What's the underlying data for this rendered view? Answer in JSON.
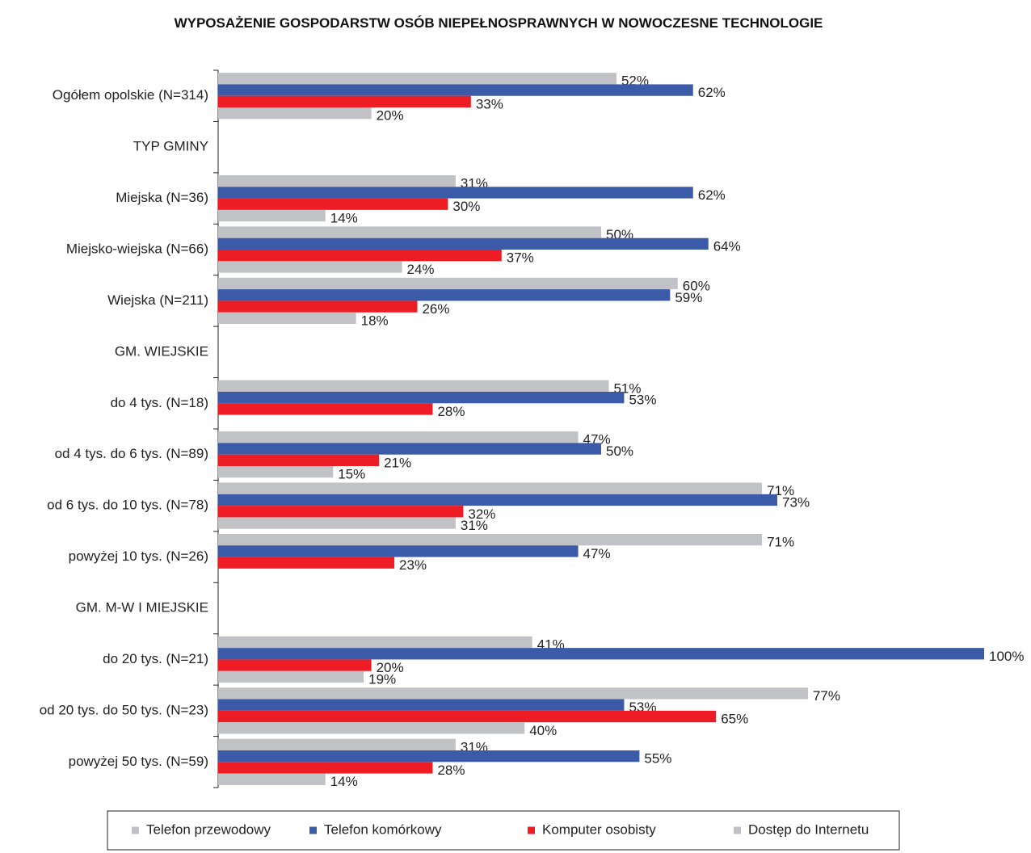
{
  "chart_data": {
    "type": "hbar",
    "title": "WYPOSAŻENIE GOSPODARSTW OSÓB NIEPEŁNOSPRAWNYCH W NOWOCZESNE TECHNOLOGIE",
    "categories": [
      "Ogółem opolskie (N=314)",
      "TYP GMINY",
      "Miejska (N=36)",
      "Miejsko-wiejska (N=66)",
      "Wiejska (N=211)",
      "GM. WIEJSKIE",
      "do 4 tys. (N=18)",
      "od 4 tys. do 6 tys. (N=89)",
      "od 6 tys. do 10 tys. (N=78)",
      "powyżej 10 tys. (N=26)",
      "GM. M-W I MIEJSKIE",
      "do 20 tys. (N=21)",
      "od 20 tys. do 50 tys. (N=23)",
      "powyżej 50 tys. (N=59)"
    ],
    "series": [
      {
        "name": "Telefon przewodowy",
        "color": "#c1c2c6",
        "values": [
          52,
          null,
          31,
          50,
          60,
          null,
          51,
          47,
          71,
          71,
          null,
          41,
          77,
          31
        ],
        "value_labels": [
          "52%",
          null,
          "31%",
          "50%",
          "60%",
          null,
          "51%",
          "47%",
          "71%",
          "71%",
          null,
          "41%",
          "77%",
          "31%"
        ]
      },
      {
        "name": "Telefon komórkowy",
        "color": "#3b5ba8",
        "values": [
          62,
          null,
          62,
          64,
          59,
          null,
          53,
          50,
          73,
          47,
          null,
          100,
          53,
          55
        ],
        "value_labels": [
          "62%",
          null,
          "62%",
          "64%",
          "59%",
          null,
          "53%",
          "50%",
          "73%",
          "47%",
          null,
          "100%",
          "53%",
          "55%"
        ]
      },
      {
        "name": "Komputer osobisty",
        "color": "#ee1d25",
        "values": [
          33,
          null,
          30,
          37,
          26,
          null,
          28,
          21,
          32,
          23,
          null,
          20,
          65,
          28
        ],
        "value_labels": [
          "33%",
          null,
          "30%",
          "37%",
          "26%",
          null,
          "28%",
          "21%",
          "32%",
          "23%",
          null,
          "20%",
          "65%",
          "28%"
        ]
      },
      {
        "name": "Dostęp do Internetu",
        "color": "#c1c2c6",
        "values": [
          20,
          null,
          14,
          24,
          18,
          null,
          null,
          15,
          31,
          null,
          null,
          19,
          40,
          14
        ],
        "value_labels": [
          "20%",
          null,
          "14%",
          "24%",
          "18%",
          null,
          null,
          "15%",
          "31%",
          null,
          null,
          "19%",
          "40%",
          "14%"
        ]
      }
    ],
    "xlim": [
      0,
      100
    ],
    "legend": "bottom"
  }
}
